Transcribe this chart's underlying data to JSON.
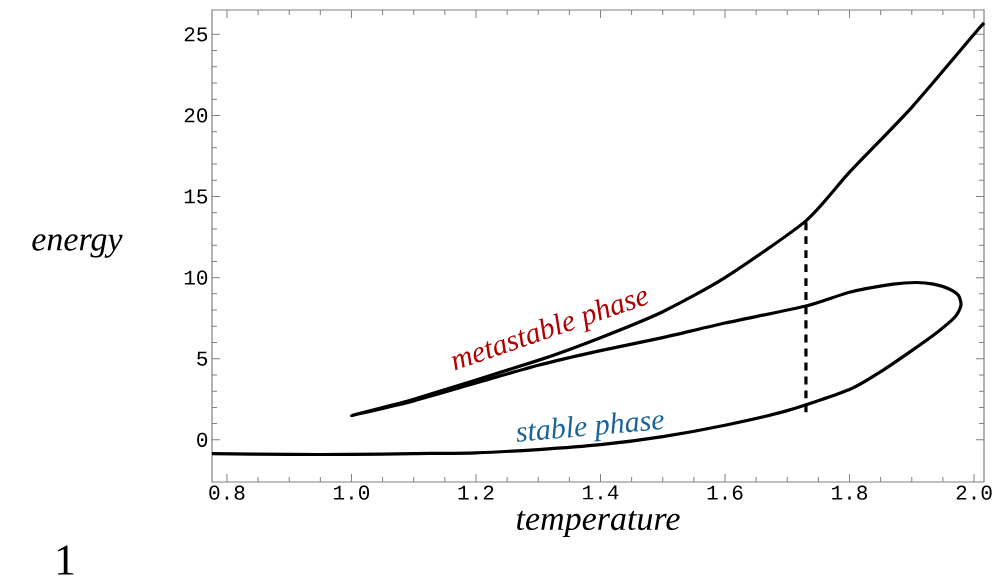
{
  "chart_data": {
    "type": "line",
    "xlabel": "temperature",
    "ylabel": "energy",
    "xlim": [
      0.776,
      2.016
    ],
    "ylim": [
      -2.6,
      26.5
    ],
    "xticks": [
      {
        "value": 0.8,
        "label": "0.8"
      },
      {
        "value": 1.0,
        "label": "1.0"
      },
      {
        "value": 1.2,
        "label": "1.2"
      },
      {
        "value": 1.4,
        "label": "1.4"
      },
      {
        "value": 1.6,
        "label": "1.6"
      },
      {
        "value": 1.8,
        "label": "1.8"
      },
      {
        "value": 2.0,
        "label": "2.0"
      }
    ],
    "yticks": [
      0,
      5,
      10,
      15,
      20,
      25
    ],
    "series": [
      {
        "color": "#000000",
        "line_style": "solid",
        "x": [
          0.776,
          0.9,
          1.0,
          1.1,
          1.2,
          1.3,
          1.4,
          1.5,
          1.6,
          1.7,
          1.8,
          1.85,
          1.9,
          1.94,
          1.97,
          1.979,
          1.975,
          1.96,
          1.935,
          1.907,
          1.87,
          1.8,
          1.73,
          1.6,
          1.5,
          1.4,
          1.3,
          1.2,
          1.1,
          1.0,
          1.1,
          1.3,
          1.4,
          1.5,
          1.6,
          1.73,
          1.8,
          1.9,
          2.0,
          2.016
        ],
        "values": [
          -0.85,
          -0.9,
          -0.9,
          -0.85,
          -0.8,
          -0.6,
          -0.3,
          0.2,
          0.9,
          1.8,
          3.1,
          4.2,
          5.5,
          6.6,
          7.6,
          8.3,
          8.9,
          9.3,
          9.6,
          9.7,
          9.6,
          9.1,
          8.25,
          7.2,
          6.3,
          5.5,
          4.6,
          3.5,
          2.4,
          1.5,
          2.5,
          4.9,
          6.3,
          7.9,
          10.0,
          13.5,
          16.5,
          20.5,
          25.0,
          25.7
        ]
      },
      {
        "color": "#000000",
        "line_style": "dashed",
        "x": [
          1.73,
          1.73
        ],
        "values": [
          1.7,
          13.5
        ]
      }
    ],
    "annotations": [
      "metastable phase",
      "stable phase",
      "1"
    ]
  }
}
